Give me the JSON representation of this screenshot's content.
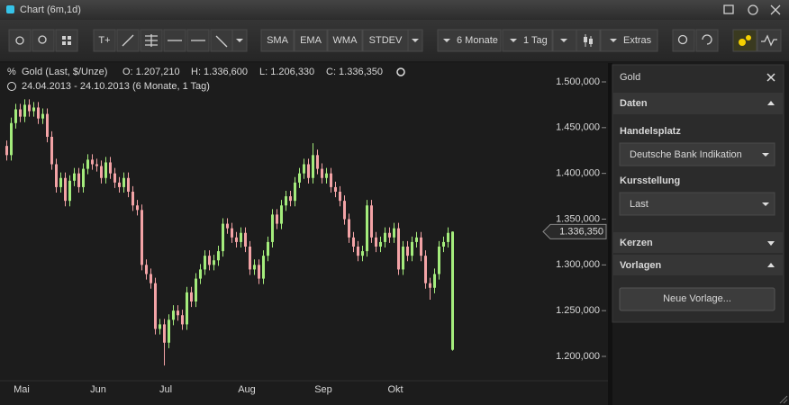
{
  "window": {
    "title": "Chart (6m,1d)"
  },
  "toolbar": {
    "text_tool": "T+",
    "indicators": [
      "SMA",
      "EMA",
      "WMA",
      "STDEV"
    ],
    "period": "6 Monate",
    "interval": "1 Tag",
    "extras": "Extras"
  },
  "chart_data": {
    "type": "candlestick",
    "title": "Gold (Last, $/Unze)",
    "ohlc_labels": [
      "O: 1.207,210",
      "H: 1.336,600",
      "L: 1.206,330",
      "C: 1.336,350"
    ],
    "subtitle": "24.04.2013 - 24.10.2013 (6 Monate, 1 Tag)",
    "categories": [
      null,
      null,
      null,
      "Mai",
      null,
      null,
      null,
      null,
      null,
      null,
      null,
      null,
      null,
      null,
      null,
      null,
      null,
      null,
      null,
      null,
      "Jun",
      null,
      null,
      null,
      null,
      null,
      null,
      null,
      null,
      null,
      null,
      null,
      null,
      null,
      null,
      "Jul",
      null,
      null,
      null,
      null,
      null,
      null,
      null,
      null,
      null,
      null,
      null,
      null,
      null,
      null,
      null,
      null,
      null,
      "Aug",
      null,
      null,
      null,
      null,
      null,
      null,
      null,
      null,
      null,
      null,
      null,
      null,
      null,
      null,
      null,
      null,
      "Sep",
      null,
      null,
      null,
      null,
      null,
      null,
      null,
      null,
      null,
      null,
      null,
      null,
      null,
      null,
      null,
      "Okt",
      null,
      null,
      null,
      null,
      null,
      null,
      null,
      null,
      null,
      null,
      null,
      null,
      null
    ],
    "open": [
      1430,
      1420,
      1455,
      1470,
      1462,
      1475,
      1468,
      1472,
      1460,
      1465,
      1440,
      1410,
      1385,
      1395,
      1370,
      1392,
      1400,
      1385,
      1405,
      1415,
      1410,
      1408,
      1395,
      1412,
      1400,
      1390,
      1385,
      1395,
      1380,
      1365,
      1360,
      1300,
      1290,
      1280,
      1230,
      1235,
      1215,
      1240,
      1250,
      1245,
      1235,
      1270,
      1260,
      1285,
      1295,
      1310,
      1300,
      1305,
      1315,
      1345,
      1340,
      1330,
      1325,
      1335,
      1320,
      1295,
      1300,
      1285,
      1310,
      1325,
      1355,
      1345,
      1365,
      1375,
      1370,
      1390,
      1400,
      1410,
      1395,
      1420,
      1405,
      1395,
      1400,
      1385,
      1380,
      1370,
      1350,
      1330,
      1320,
      1310,
      1315,
      1365,
      1330,
      1320,
      1325,
      1335,
      1330,
      1340,
      1295,
      1320,
      1310,
      1325,
      1330,
      1310,
      1280,
      1275,
      1290,
      1320,
      1325,
      1207.21
    ],
    "high": [
      1436,
      1461,
      1476,
      1476,
      1481,
      1481,
      1478,
      1478,
      1471,
      1471,
      1446,
      1416,
      1401,
      1401,
      1398,
      1406,
      1406,
      1411,
      1421,
      1421,
      1416,
      1414,
      1418,
      1418,
      1406,
      1396,
      1401,
      1401,
      1386,
      1371,
      1366,
      1306,
      1296,
      1286,
      1241,
      1241,
      1246,
      1256,
      1256,
      1251,
      1276,
      1276,
      1291,
      1301,
      1316,
      1316,
      1311,
      1321,
      1351,
      1351,
      1346,
      1336,
      1341,
      1341,
      1326,
      1306,
      1306,
      1316,
      1331,
      1361,
      1361,
      1371,
      1381,
      1381,
      1396,
      1406,
      1416,
      1416,
      1433,
      1426,
      1411,
      1406,
      1406,
      1391,
      1386,
      1376,
      1356,
      1336,
      1326,
      1321,
      1371,
      1371,
      1336,
      1331,
      1341,
      1341,
      1346,
      1346,
      1326,
      1326,
      1331,
      1336,
      1336,
      1316,
      1286,
      1296,
      1326,
      1331,
      1341,
      1336.6
    ],
    "low": [
      1414,
      1414,
      1449,
      1456,
      1456,
      1462,
      1462,
      1454,
      1454,
      1434,
      1404,
      1379,
      1379,
      1364,
      1364,
      1386,
      1379,
      1379,
      1399,
      1404,
      1402,
      1389,
      1389,
      1394,
      1384,
      1379,
      1379,
      1374,
      1359,
      1354,
      1294,
      1284,
      1274,
      1224,
      1224,
      1190,
      1209,
      1234,
      1239,
      1229,
      1229,
      1254,
      1254,
      1279,
      1289,
      1294,
      1294,
      1299,
      1309,
      1334,
      1324,
      1319,
      1319,
      1314,
      1289,
      1289,
      1279,
      1279,
      1304,
      1319,
      1339,
      1339,
      1359,
      1364,
      1364,
      1384,
      1394,
      1389,
      1389,
      1399,
      1389,
      1389,
      1379,
      1374,
      1364,
      1344,
      1324,
      1314,
      1304,
      1304,
      1309,
      1324,
      1314,
      1314,
      1319,
      1324,
      1324,
      1289,
      1289,
      1304,
      1304,
      1319,
      1304,
      1274,
      1262,
      1269,
      1284,
      1314,
      1319,
      1206.33
    ],
    "close": [
      1420,
      1455,
      1470,
      1462,
      1475,
      1468,
      1472,
      1460,
      1465,
      1440,
      1410,
      1385,
      1395,
      1370,
      1392,
      1400,
      1385,
      1405,
      1415,
      1410,
      1408,
      1395,
      1412,
      1400,
      1390,
      1385,
      1395,
      1380,
      1365,
      1360,
      1300,
      1290,
      1280,
      1230,
      1235,
      1215,
      1240,
      1250,
      1245,
      1235,
      1270,
      1260,
      1285,
      1295,
      1310,
      1300,
      1305,
      1315,
      1345,
      1340,
      1330,
      1325,
      1335,
      1320,
      1295,
      1300,
      1285,
      1310,
      1325,
      1355,
      1345,
      1365,
      1375,
      1370,
      1390,
      1400,
      1410,
      1395,
      1420,
      1405,
      1395,
      1400,
      1385,
      1380,
      1370,
      1350,
      1330,
      1320,
      1310,
      1315,
      1365,
      1330,
      1320,
      1325,
      1335,
      1330,
      1340,
      1295,
      1320,
      1310,
      1325,
      1330,
      1310,
      1280,
      1275,
      1290,
      1320,
      1325,
      1335,
      1336.35
    ],
    "up_color": "#a4ec7c",
    "down_color": "#f3a3a6",
    "ylim": [
      1180,
      1520
    ],
    "yticks": [
      {
        "value": 1500,
        "label": "1.500,000"
      },
      {
        "value": 1450,
        "label": "1.450,000"
      },
      {
        "value": 1400,
        "label": "1.400,000"
      },
      {
        "value": 1350,
        "label": "1.350,000"
      },
      {
        "value": 1300,
        "label": "1.300,000"
      },
      {
        "value": 1250,
        "label": "1.250,000"
      },
      {
        "value": 1200,
        "label": "1.200,000"
      }
    ],
    "last_price": {
      "value": 1336.35,
      "label": "1.336,350"
    },
    "grid": false
  },
  "sidebar": {
    "title": "Gold",
    "sections": [
      "Daten",
      "Kerzen",
      "Vorlagen"
    ],
    "fields": [
      {
        "label": "Handelsplatz",
        "value": "Deutsche Bank Indikation"
      },
      {
        "label": "Kursstellung",
        "value": "Last"
      }
    ],
    "button": "Neue Vorlage..."
  }
}
